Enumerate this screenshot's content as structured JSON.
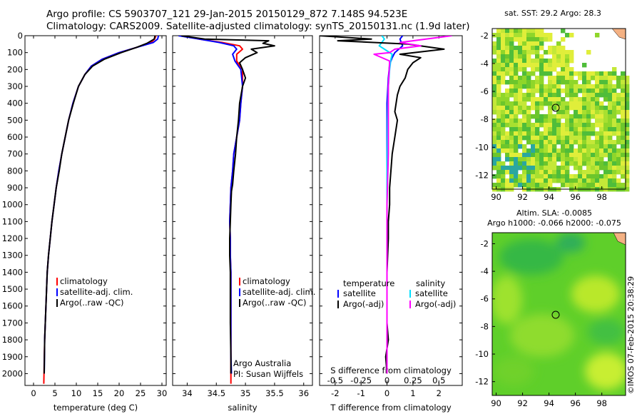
{
  "header": {
    "line1": "Argo profile: CS 5903707_121 29-Jan-2015 20150129_872 7.148S 94.523E",
    "line2": "Climatology: CARS2009. Satellite-adjusted climatology: synTS_20150131.nc (1.9d later)"
  },
  "stamp": "©IMOS 07-Feb-2015 20:38:29",
  "colors": {
    "climatology": "#ff0000",
    "satellite": "#0000ff",
    "argo": "#000000",
    "temperature_satellite": "#0000ff",
    "salinity_satellite": "#00e0ff",
    "salinity_argo": "#ff00ff"
  },
  "depth_axis": {
    "ylim": [
      0,
      2070
    ],
    "ticks": [
      0,
      100,
      200,
      300,
      400,
      500,
      600,
      700,
      800,
      900,
      1000,
      1100,
      1200,
      1300,
      1400,
      1500,
      1600,
      1700,
      1800,
      1900,
      2000
    ]
  },
  "chart_data": [
    {
      "type": "line",
      "id": "temperature",
      "xlabel": "temperature (deg C)",
      "xlim": [
        -2,
        31
      ],
      "xticks": [
        0,
        5,
        10,
        15,
        20,
        25,
        30
      ],
      "legend": [
        "climatology",
        "satellite-adj. clim.",
        "Argo(..raw -QC)"
      ],
      "series": [
        {
          "name": "climatology",
          "color": "#ff0000",
          "x": [
            28.6,
            28.3,
            27.5,
            24,
            20,
            16,
            13.5,
            12,
            10.5,
            9.2,
            8.2,
            7.4,
            6.6,
            5.9,
            5.3,
            4.8,
            4.3,
            3.9,
            3.5,
            3.2,
            2.9,
            2.6,
            2.4
          ],
          "y": [
            0,
            20,
            40,
            70,
            100,
            140,
            180,
            230,
            300,
            400,
            500,
            600,
            700,
            800,
            900,
            1000,
            1100,
            1200,
            1300,
            1400,
            1600,
            1800,
            2060
          ]
        },
        {
          "name": "satellite-adj. clim.",
          "color": "#0000ff",
          "x": [
            29.2,
            29,
            28,
            24,
            20,
            16,
            13.5,
            12,
            10.5,
            9.2,
            8.2,
            7.4,
            6.6,
            5.9,
            5.3,
            4.8,
            4.3,
            3.9,
            3.5,
            3.2,
            2.9,
            2.6,
            2.5
          ],
          "y": [
            0,
            20,
            40,
            70,
            100,
            140,
            180,
            230,
            300,
            400,
            500,
            600,
            700,
            800,
            900,
            1000,
            1100,
            1200,
            1300,
            1400,
            1600,
            1800,
            2000
          ]
        },
        {
          "name": "Argo(..raw -QC)",
          "color": "#000000",
          "x": [
            28.4,
            28.2,
            26.5,
            24,
            20.5,
            16.5,
            13.8,
            12,
            10.5,
            9.3,
            8.2,
            7.4,
            6.6,
            6,
            5.3,
            4.8,
            4.3,
            3.9,
            3.5,
            3.2,
            2.9,
            2.6,
            2.5
          ],
          "y": [
            0,
            20,
            45,
            70,
            100,
            140,
            180,
            230,
            300,
            400,
            500,
            600,
            700,
            800,
            900,
            1000,
            1100,
            1200,
            1300,
            1400,
            1600,
            1800,
            2000
          ]
        }
      ]
    },
    {
      "type": "line",
      "id": "salinity",
      "xlabel": "salinity",
      "xlim": [
        33.75,
        36.15
      ],
      "xticks": [
        34,
        34.5,
        35,
        35.5,
        36
      ],
      "legend": [
        "climatology",
        "satellite-adj. clim.",
        "Argo(..raw -QC)"
      ],
      "annotation": [
        "Argo Australia",
        "PI: Susan Wijffels"
      ],
      "series": [
        {
          "name": "climatology",
          "color": "#ff0000",
          "x": [
            33.9,
            34.2,
            34.6,
            34.9,
            34.95,
            34.85,
            34.85,
            34.95,
            34.95,
            34.92,
            34.9,
            34.85,
            34.8,
            34.78,
            34.75,
            34.74,
            34.73,
            34.74,
            34.74,
            34.75,
            34.75,
            34.75,
            34.75,
            34.75
          ],
          "y": [
            0,
            20,
            40,
            60,
            80,
            110,
            150,
            200,
            300,
            400,
            500,
            600,
            700,
            800,
            900,
            1000,
            1100,
            1200,
            1300,
            1400,
            1500,
            1700,
            1900,
            2060
          ]
        },
        {
          "name": "satellite-adj. clim.",
          "color": "#0000ff",
          "x": [
            33.85,
            34.2,
            34.55,
            34.8,
            34.85,
            34.78,
            34.82,
            34.92,
            34.95,
            34.92,
            34.9,
            34.85,
            34.8,
            34.78,
            34.75,
            34.74,
            34.73,
            34.74,
            34.74,
            34.75,
            34.75,
            34.75,
            34.75,
            34.76
          ],
          "y": [
            0,
            20,
            40,
            60,
            80,
            110,
            150,
            200,
            300,
            400,
            500,
            600,
            700,
            800,
            900,
            1000,
            1100,
            1200,
            1300,
            1400,
            1500,
            1700,
            1900,
            2000
          ]
        },
        {
          "name": "Argo(..raw -QC)",
          "color": "#000000",
          "x": [
            33.9,
            34.3,
            35.4,
            35.3,
            35.5,
            35.1,
            35.2,
            35.0,
            34.9,
            34.95,
            35.0,
            34.95,
            34.9,
            34.88,
            34.85,
            34.83,
            34.8,
            34.78,
            34.76,
            34.75,
            34.74,
            34.73,
            34.73,
            34.74,
            34.74,
            34.74,
            34.75,
            34.75
          ],
          "y": [
            0,
            20,
            30,
            45,
            60,
            80,
            100,
            130,
            160,
            200,
            250,
            300,
            400,
            500,
            600,
            700,
            800,
            880,
            920,
            1000,
            1100,
            1200,
            1300,
            1400,
            1500,
            1700,
            1900,
            2000
          ]
        }
      ]
    },
    {
      "type": "line",
      "id": "difference",
      "xlabel": "T difference from climatology",
      "xlim": [
        -2.6,
        2.9
      ],
      "xticks": [
        -2,
        -1,
        0,
        1,
        2
      ],
      "top_axis_label": "S difference from climatology",
      "top_ticks": [
        "-0.5",
        "-0.25",
        "0",
        "0.25",
        "0.5"
      ],
      "top_ticks_x": [
        -2,
        -1,
        0,
        1,
        2
      ],
      "legend_titles": [
        "temperature",
        "salinity"
      ],
      "legend_temperature": [
        "satellite",
        "Argo(-adj)"
      ],
      "legend_salinity": [
        "satellite",
        "Argo(-adj)"
      ],
      "series": [
        {
          "name": "temperature satellite",
          "color": "#0000ff",
          "x": [
            0.6,
            0.5,
            0.6,
            0.3,
            0.2,
            0.1,
            0.05,
            0,
            0,
            0,
            0,
            0
          ],
          "y": [
            0,
            20,
            60,
            100,
            130,
            170,
            250,
            400,
            800,
            1200,
            1600,
            2000
          ]
        },
        {
          "name": "salinity satellite",
          "color": "#00e0ff",
          "x": [
            -0.2,
            -0.1,
            -0.3,
            -0.1,
            0.2,
            0.15,
            0.1,
            0.05,
            0.02,
            0,
            0,
            0,
            0
          ],
          "y": [
            0,
            20,
            60,
            80,
            110,
            140,
            200,
            300,
            500,
            800,
            1200,
            1600,
            2000
          ]
        },
        {
          "name": "temperature Argo(-adj)",
          "color": "#000000",
          "x": [
            -2.6,
            -0.6,
            -1.9,
            0.8,
            2.2,
            0.5,
            1.3,
            1.0,
            0.8,
            0.7,
            0.5,
            0.4,
            0.35,
            0.3,
            0.4,
            0.35,
            0.3,
            0.2,
            0.15,
            0.1,
            0.1,
            0.05,
            0.05,
            0.0,
            0.0,
            0.0,
            0.05,
            -0.05,
            0.0
          ],
          "y": [
            0,
            20,
            30,
            50,
            80,
            110,
            130,
            160,
            200,
            250,
            300,
            350,
            400,
            450,
            500,
            550,
            600,
            700,
            800,
            900,
            1000,
            1100,
            1200,
            1400,
            1600,
            1700,
            1800,
            1900,
            2000
          ]
        },
        {
          "name": "salinity Argo(-adj)",
          "color": "#ff00ff",
          "x": [
            2.5,
            1.5,
            0.5,
            1.3,
            0.3,
            0.1,
            -0.5,
            0.1,
            0.05,
            0.05,
            0.0,
            0.0,
            0.0,
            0.0
          ],
          "y": [
            0,
            20,
            40,
            60,
            80,
            100,
            110,
            150,
            300,
            700,
            1000,
            1400,
            1800,
            2000
          ]
        }
      ]
    },
    {
      "type": "heatmap",
      "id": "sst-map",
      "title": "sat. SST: 29.2 Argo: 28.3",
      "xlim": [
        89.7,
        99.8
      ],
      "ylim": [
        -13,
        -1.5
      ],
      "xticks": [
        90,
        92,
        94,
        96,
        98
      ],
      "yticks": [
        -2,
        -4,
        -6,
        -8,
        -10,
        -12
      ],
      "argo_position": {
        "lon": 94.523,
        "lat": -7.148
      }
    },
    {
      "type": "heatmap",
      "id": "sla-map",
      "title": "Altim. SLA: -0.0085",
      "subtitle": "Argo h1000: -0.066 h2000: -0.075",
      "xlim": [
        89.7,
        99.8
      ],
      "ylim": [
        -13,
        -1.2
      ],
      "xticks": [
        90,
        92,
        94,
        96,
        98
      ],
      "yticks": [
        -2,
        -4,
        -6,
        -8,
        -10,
        -12
      ],
      "argo_position": {
        "lon": 94.523,
        "lat": -7.148
      }
    }
  ]
}
